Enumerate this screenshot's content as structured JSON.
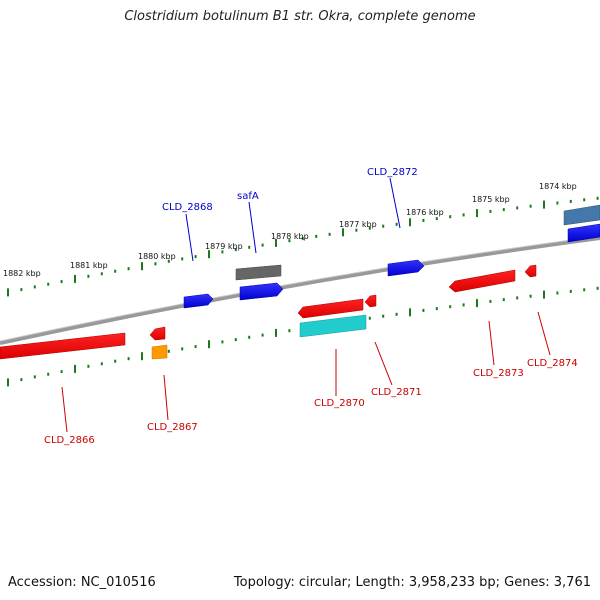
{
  "title": "Clostridium botulinum B1 str. Okra, complete genome",
  "footer": {
    "accession": "Accession: NC_010516",
    "topology": "Topology: circular; Length: 3,958,233 bp; Genes: 3,761"
  },
  "scale_labels": [
    "1882 kbp",
    "1881 kbp",
    "1880 kbp",
    "1879 kbp",
    "1878 kbp",
    "1877 kbp",
    "1876 kbp",
    "1875 kbp",
    "1874 kbp"
  ],
  "genes_top": [
    {
      "name": "CLD_2868",
      "color": "#0000ee",
      "line_color": "#0000cc"
    },
    {
      "name": "safA",
      "color": "#0000ee",
      "line_color": "#0000cc"
    },
    {
      "name": "CLD_2872",
      "color": "#0000ee",
      "line_color": "#0000cc"
    }
  ],
  "genes_bottom": [
    {
      "name": "CLD_2866",
      "color": "#ee0000",
      "line_color": "#cc0000"
    },
    {
      "name": "CLD_2867",
      "color": "#ee0000",
      "line_color": "#cc0000"
    },
    {
      "name": "CLD_2870",
      "color": "#ee0000",
      "line_color": "#cc0000"
    },
    {
      "name": "CLD_2871",
      "color": "#ee0000",
      "line_color": "#cc0000"
    },
    {
      "name": "CLD_2873",
      "color": "#ee0000",
      "line_color": "#cc0000"
    },
    {
      "name": "CLD_2874",
      "color": "#ee0000",
      "line_color": "#cc0000"
    }
  ],
  "colors": {
    "backbone": "#888888",
    "forward_gene": "#0000ee",
    "reverse_gene": "#ee0000",
    "tick": "#1a7a1a",
    "rna_gray": "#666666",
    "cyan_feature": "#22cccc",
    "orange_feature": "#ff9900",
    "steelblue_feature": "#4477aa"
  }
}
